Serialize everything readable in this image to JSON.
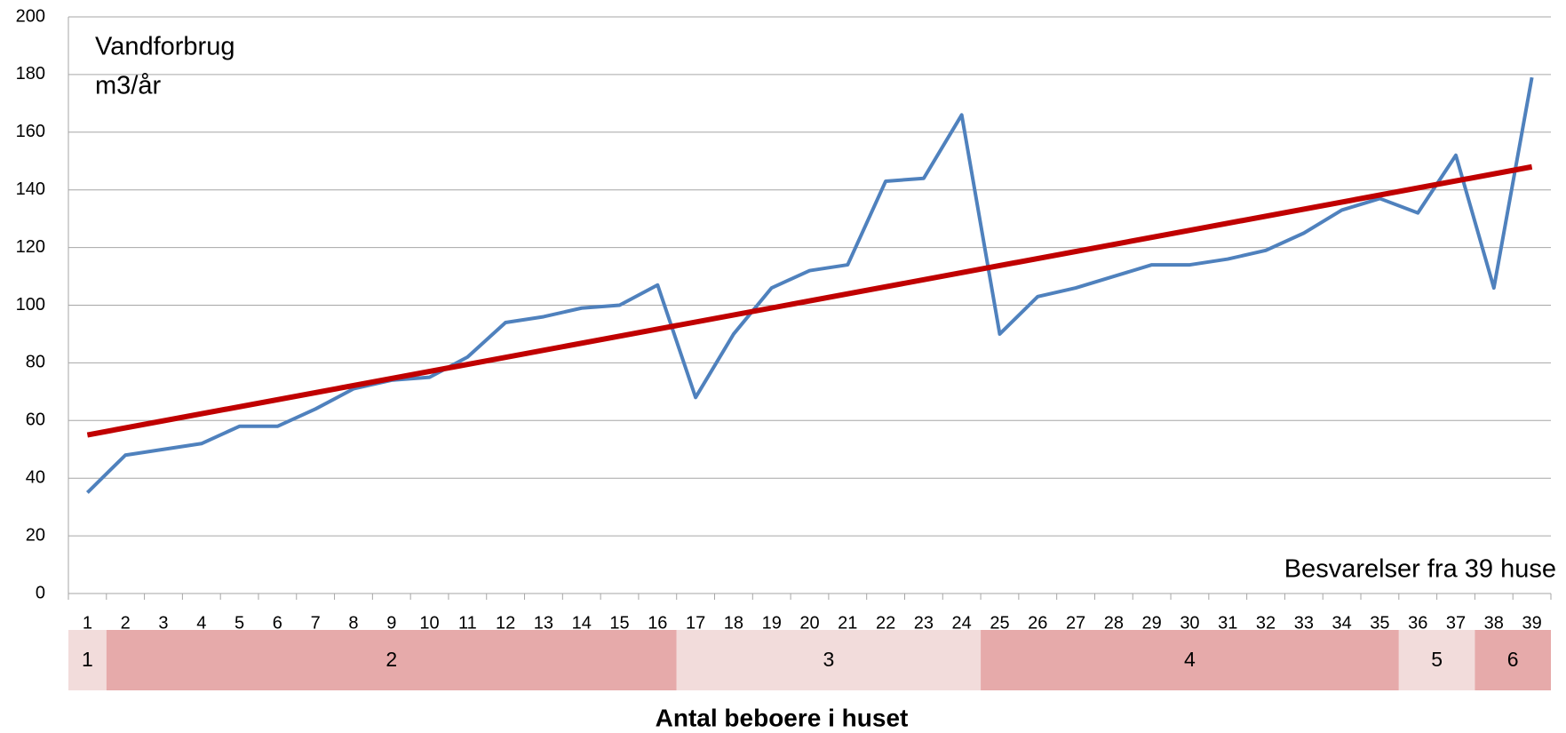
{
  "chart_data": {
    "type": "line",
    "ylabel": [
      "Vandforbrug",
      "m3/år"
    ],
    "annotation": "Besvarelser fra 39 huse",
    "xlabel": "Antal beboere i huset",
    "categories": [
      "1",
      "2",
      "3",
      "4",
      "5",
      "6",
      "7",
      "8",
      "9",
      "10",
      "11",
      "12",
      "13",
      "14",
      "15",
      "16",
      "17",
      "18",
      "19",
      "20",
      "21",
      "22",
      "23",
      "24",
      "25",
      "26",
      "27",
      "28",
      "29",
      "30",
      "31",
      "32",
      "33",
      "34",
      "35",
      "36",
      "37",
      "38",
      "39"
    ],
    "series": [
      {
        "color": "#4f81bd",
        "values": [
          35,
          48,
          50,
          52,
          58,
          58,
          64,
          71,
          74,
          75,
          82,
          94,
          96,
          99,
          100,
          107,
          68,
          90,
          106,
          112,
          114,
          143,
          144,
          166,
          90,
          103,
          106,
          110,
          114,
          114,
          116,
          119,
          125,
          133,
          137,
          132,
          152,
          106,
          179
        ]
      }
    ],
    "trend": {
      "color": "#c00000",
      "start": 55,
      "end": 148
    },
    "groups": [
      {
        "label": "1",
        "count": 1,
        "color": "#f2dcdb"
      },
      {
        "label": "2",
        "count": 15,
        "color": "#e6aaaa"
      },
      {
        "label": "3",
        "count": 8,
        "color": "#f2dcdb"
      },
      {
        "label": "4",
        "count": 11,
        "color": "#e6aaaa"
      },
      {
        "label": "5",
        "count": 2,
        "color": "#f2dcdb"
      },
      {
        "label": "6",
        "count": 2,
        "color": "#e6aaaa"
      }
    ],
    "ylim": [
      0,
      200
    ],
    "yticks": [
      0,
      20,
      40,
      60,
      80,
      100,
      120,
      140,
      160,
      180,
      200
    ],
    "grid": true
  }
}
